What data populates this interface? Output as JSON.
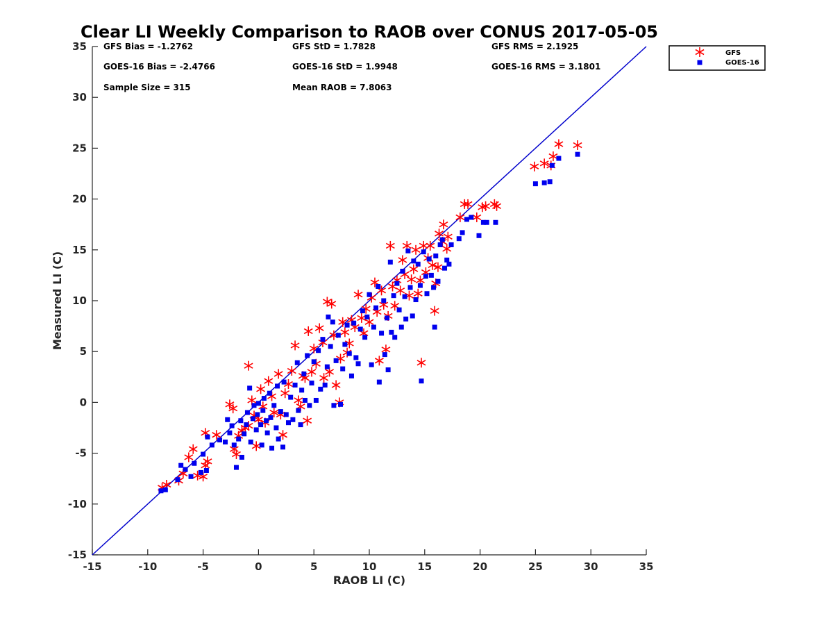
{
  "chart_data": {
    "type": "scatter",
    "title": "Clear LI Weekly Comparison to RAOB over CONUS 2017-05-05",
    "xlabel": "RAOB LI (C)",
    "ylabel": "Measured LI (C)",
    "xlim": [
      -15,
      35
    ],
    "ylim": [
      -15,
      35
    ],
    "xticks": [
      "-15",
      "-10",
      "-5",
      "0",
      "5",
      "10",
      "15",
      "20",
      "25",
      "30",
      "35"
    ],
    "yticks": [
      "-15",
      "-10",
      "-5",
      "0",
      "5",
      "10",
      "15",
      "20",
      "25",
      "30",
      "35"
    ],
    "reference_line": {
      "label": "1:1",
      "from": [
        -15,
        -15
      ],
      "to": [
        35,
        35
      ],
      "color": "#0000cc"
    },
    "stats": {
      "gfs_bias": "GFS Bias = -1.2762",
      "goes_bias": "GOES-16 Bias = -2.4766",
      "sample_size": "Sample Size = 315",
      "gfs_std": "GFS StD = 1.7828",
      "goes_std": "GOES-16 StD = 1.9948",
      "mean_raob": "Mean RAOB = 7.8063",
      "gfs_rms": "GFS RMS = 2.1925",
      "goes_rms": "GOES-16 RMS = 3.1801"
    },
    "legend": {
      "position": "top-right",
      "items": [
        "GFS",
        "GOES-16"
      ]
    },
    "series": [
      {
        "name": "GFS",
        "marker": "asterisk",
        "color": "#ff0000",
        "points": [
          [
            -8.7,
            -8.4
          ],
          [
            -8.3,
            -8.1
          ],
          [
            -7.2,
            -7.7
          ],
          [
            -6.8,
            -7.0
          ],
          [
            -6.3,
            -5.4
          ],
          [
            -5.9,
            -4.6
          ],
          [
            -5.5,
            -7.2
          ],
          [
            -5.0,
            -7.3
          ],
          [
            -4.8,
            -6.2
          ],
          [
            -4.6,
            -5.8
          ],
          [
            -4.8,
            -3.0
          ],
          [
            -3.8,
            -3.2
          ],
          [
            -2.6,
            -0.2
          ],
          [
            -2.3,
            -0.6
          ],
          [
            -2.2,
            -4.6
          ],
          [
            -2.0,
            -5.1
          ],
          [
            -1.8,
            -3.3
          ],
          [
            -1.5,
            -2.8
          ],
          [
            -1.2,
            -2.5
          ],
          [
            -0.9,
            -2.3
          ],
          [
            -0.9,
            3.6
          ],
          [
            -0.6,
            0.2
          ],
          [
            -0.4,
            -1.3
          ],
          [
            -0.2,
            -4.3
          ],
          [
            0.0,
            -1.7
          ],
          [
            0.2,
            1.3
          ],
          [
            0.4,
            -0.4
          ],
          [
            0.6,
            -2.0
          ],
          [
            0.9,
            2.1
          ],
          [
            1.2,
            0.6
          ],
          [
            1.4,
            -1.0
          ],
          [
            1.8,
            2.8
          ],
          [
            2.0,
            -1.2
          ],
          [
            2.2,
            -3.2
          ],
          [
            2.4,
            0.9
          ],
          [
            2.7,
            1.8
          ],
          [
            3.0,
            3.1
          ],
          [
            3.3,
            5.6
          ],
          [
            3.6,
            0.2
          ],
          [
            3.8,
            -0.4
          ],
          [
            4.0,
            2.6
          ],
          [
            4.2,
            2.4
          ],
          [
            4.4,
            -1.8
          ],
          [
            4.5,
            7.0
          ],
          [
            4.8,
            3.0
          ],
          [
            5.0,
            5.3
          ],
          [
            5.2,
            3.8
          ],
          [
            5.5,
            7.3
          ],
          [
            5.8,
            5.9
          ],
          [
            5.9,
            2.4
          ],
          [
            6.2,
            9.9
          ],
          [
            6.4,
            3.0
          ],
          [
            6.6,
            9.7
          ],
          [
            6.8,
            6.6
          ],
          [
            7.0,
            1.7
          ],
          [
            7.3,
            0.0
          ],
          [
            7.4,
            4.3
          ],
          [
            7.6,
            7.9
          ],
          [
            7.8,
            6.9
          ],
          [
            8.0,
            4.9
          ],
          [
            8.2,
            5.8
          ],
          [
            8.4,
            8.1
          ],
          [
            8.7,
            7.4
          ],
          [
            9.0,
            10.6
          ],
          [
            9.3,
            8.3
          ],
          [
            9.5,
            6.8
          ],
          [
            9.7,
            9.2
          ],
          [
            10.0,
            7.9
          ],
          [
            10.2,
            10.3
          ],
          [
            10.5,
            11.8
          ],
          [
            10.7,
            8.9
          ],
          [
            10.9,
            4.1
          ],
          [
            11.1,
            11.0
          ],
          [
            11.3,
            9.6
          ],
          [
            11.5,
            5.2
          ],
          [
            11.7,
            8.5
          ],
          [
            11.9,
            15.4
          ],
          [
            12.1,
            11.4
          ],
          [
            12.3,
            9.5
          ],
          [
            12.5,
            12.0
          ],
          [
            12.8,
            11.0
          ],
          [
            13.0,
            14.0
          ],
          [
            13.2,
            12.6
          ],
          [
            13.4,
            15.4
          ],
          [
            13.6,
            10.5
          ],
          [
            13.8,
            12.1
          ],
          [
            14.0,
            13.1
          ],
          [
            14.2,
            15.0
          ],
          [
            14.4,
            10.7
          ],
          [
            14.6,
            12.0
          ],
          [
            14.7,
            3.9
          ],
          [
            14.9,
            15.4
          ],
          [
            15.1,
            12.8
          ],
          [
            15.3,
            14.2
          ],
          [
            15.5,
            15.4
          ],
          [
            15.7,
            13.5
          ],
          [
            15.9,
            9.0
          ],
          [
            16.0,
            11.7
          ],
          [
            16.2,
            13.3
          ],
          [
            16.3,
            16.6
          ],
          [
            16.6,
            15.8
          ],
          [
            16.7,
            17.5
          ],
          [
            17.0,
            15.1
          ],
          [
            17.1,
            16.3
          ],
          [
            18.2,
            18.2
          ],
          [
            18.6,
            19.5
          ],
          [
            18.9,
            19.5
          ],
          [
            19.7,
            18.2
          ],
          [
            20.2,
            19.2
          ],
          [
            20.5,
            19.3
          ],
          [
            21.3,
            19.5
          ],
          [
            21.5,
            19.3
          ],
          [
            24.9,
            23.2
          ],
          [
            25.8,
            23.5
          ],
          [
            26.4,
            23.3
          ],
          [
            26.6,
            24.2
          ],
          [
            27.1,
            25.4
          ],
          [
            28.8,
            25.3
          ]
        ]
      },
      {
        "name": "GOES-16",
        "marker": "square",
        "color": "#0000ee",
        "points": [
          [
            -8.8,
            -8.7
          ],
          [
            -8.4,
            -8.6
          ],
          [
            -7.3,
            -7.6
          ],
          [
            -7.0,
            -6.2
          ],
          [
            -6.6,
            -6.6
          ],
          [
            -6.1,
            -7.3
          ],
          [
            -5.8,
            -6.0
          ],
          [
            -5.2,
            -6.9
          ],
          [
            -5.0,
            -5.1
          ],
          [
            -4.7,
            -6.7
          ],
          [
            -4.6,
            -3.4
          ],
          [
            -4.2,
            -4.2
          ],
          [
            -3.5,
            -3.7
          ],
          [
            -3.0,
            -3.9
          ],
          [
            -2.8,
            -1.7
          ],
          [
            -2.6,
            -3.0
          ],
          [
            -2.4,
            -2.3
          ],
          [
            -2.2,
            -4.2
          ],
          [
            -2.0,
            -6.4
          ],
          [
            -1.8,
            -3.6
          ],
          [
            -1.6,
            -1.8
          ],
          [
            -1.5,
            -5.4
          ],
          [
            -1.3,
            -3.1
          ],
          [
            -1.1,
            -2.2
          ],
          [
            -1.0,
            -1.0
          ],
          [
            -0.8,
            1.4
          ],
          [
            -0.7,
            -3.9
          ],
          [
            -0.5,
            -1.6
          ],
          [
            -0.4,
            -0.3
          ],
          [
            -0.2,
            -2.7
          ],
          [
            -0.1,
            -1.2
          ],
          [
            0.0,
            -0.1
          ],
          [
            0.2,
            -2.2
          ],
          [
            0.3,
            -4.2
          ],
          [
            0.4,
            -0.8
          ],
          [
            0.5,
            0.4
          ],
          [
            0.7,
            -1.8
          ],
          [
            0.8,
            -3.0
          ],
          [
            1.0,
            0.9
          ],
          [
            1.1,
            -1.5
          ],
          [
            1.2,
            -4.5
          ],
          [
            1.4,
            -0.3
          ],
          [
            1.6,
            -2.5
          ],
          [
            1.7,
            1.6
          ],
          [
            1.8,
            -3.6
          ],
          [
            2.0,
            -0.9
          ],
          [
            2.2,
            -4.4
          ],
          [
            2.3,
            2.0
          ],
          [
            2.5,
            -1.2
          ],
          [
            2.7,
            -2.0
          ],
          [
            2.9,
            0.5
          ],
          [
            3.1,
            -1.7
          ],
          [
            3.3,
            1.7
          ],
          [
            3.5,
            3.9
          ],
          [
            3.6,
            -0.8
          ],
          [
            3.8,
            -2.2
          ],
          [
            3.9,
            1.2
          ],
          [
            4.1,
            2.8
          ],
          [
            4.2,
            0.2
          ],
          [
            4.4,
            4.6
          ],
          [
            4.6,
            -0.3
          ],
          [
            4.8,
            1.9
          ],
          [
            5.0,
            4.0
          ],
          [
            5.2,
            0.2
          ],
          [
            5.4,
            5.1
          ],
          [
            5.6,
            1.3
          ],
          [
            5.8,
            6.2
          ],
          [
            6.0,
            1.7
          ],
          [
            6.2,
            3.5
          ],
          [
            6.3,
            8.4
          ],
          [
            6.5,
            5.5
          ],
          [
            6.7,
            7.9
          ],
          [
            6.8,
            -0.3
          ],
          [
            7.0,
            4.1
          ],
          [
            7.2,
            6.6
          ],
          [
            7.4,
            -0.2
          ],
          [
            7.6,
            3.3
          ],
          [
            7.8,
            5.7
          ],
          [
            8.0,
            7.6
          ],
          [
            8.2,
            4.8
          ],
          [
            8.4,
            2.6
          ],
          [
            8.6,
            7.8
          ],
          [
            8.8,
            4.4
          ],
          [
            9.0,
            3.8
          ],
          [
            9.2,
            7.2
          ],
          [
            9.4,
            9.0
          ],
          [
            9.6,
            6.4
          ],
          [
            9.8,
            8.4
          ],
          [
            10.0,
            10.6
          ],
          [
            10.2,
            3.7
          ],
          [
            10.4,
            7.4
          ],
          [
            10.6,
            9.3
          ],
          [
            10.8,
            11.4
          ],
          [
            10.9,
            2.0
          ],
          [
            11.1,
            6.8
          ],
          [
            11.3,
            10.0
          ],
          [
            11.4,
            4.7
          ],
          [
            11.6,
            8.3
          ],
          [
            11.7,
            3.2
          ],
          [
            11.9,
            13.8
          ],
          [
            12.0,
            6.9
          ],
          [
            12.2,
            10.5
          ],
          [
            12.3,
            6.4
          ],
          [
            12.5,
            11.7
          ],
          [
            12.7,
            9.1
          ],
          [
            12.9,
            7.4
          ],
          [
            13.0,
            12.9
          ],
          [
            13.2,
            10.4
          ],
          [
            13.3,
            8.2
          ],
          [
            13.5,
            14.9
          ],
          [
            13.7,
            11.3
          ],
          [
            13.9,
            8.5
          ],
          [
            14.0,
            13.9
          ],
          [
            14.2,
            10.1
          ],
          [
            14.4,
            13.6
          ],
          [
            14.6,
            11.5
          ],
          [
            14.7,
            2.1
          ],
          [
            14.9,
            14.8
          ],
          [
            15.1,
            12.4
          ],
          [
            15.2,
            10.7
          ],
          [
            15.4,
            14.1
          ],
          [
            15.6,
            12.5
          ],
          [
            15.8,
            11.3
          ],
          [
            15.9,
            7.4
          ],
          [
            16.0,
            14.4
          ],
          [
            16.2,
            11.9
          ],
          [
            16.4,
            15.5
          ],
          [
            16.6,
            16.0
          ],
          [
            16.8,
            13.2
          ],
          [
            17.0,
            14.0
          ],
          [
            17.2,
            13.6
          ],
          [
            17.4,
            15.5
          ],
          [
            18.1,
            16.1
          ],
          [
            18.4,
            16.7
          ],
          [
            18.8,
            18.0
          ],
          [
            19.2,
            18.2
          ],
          [
            19.9,
            16.4
          ],
          [
            20.3,
            17.7
          ],
          [
            20.6,
            17.7
          ],
          [
            21.4,
            17.7
          ],
          [
            25.0,
            21.5
          ],
          [
            25.8,
            21.6
          ],
          [
            26.3,
            21.7
          ],
          [
            26.5,
            23.3
          ],
          [
            27.1,
            24.0
          ],
          [
            28.8,
            24.4
          ]
        ]
      }
    ]
  }
}
